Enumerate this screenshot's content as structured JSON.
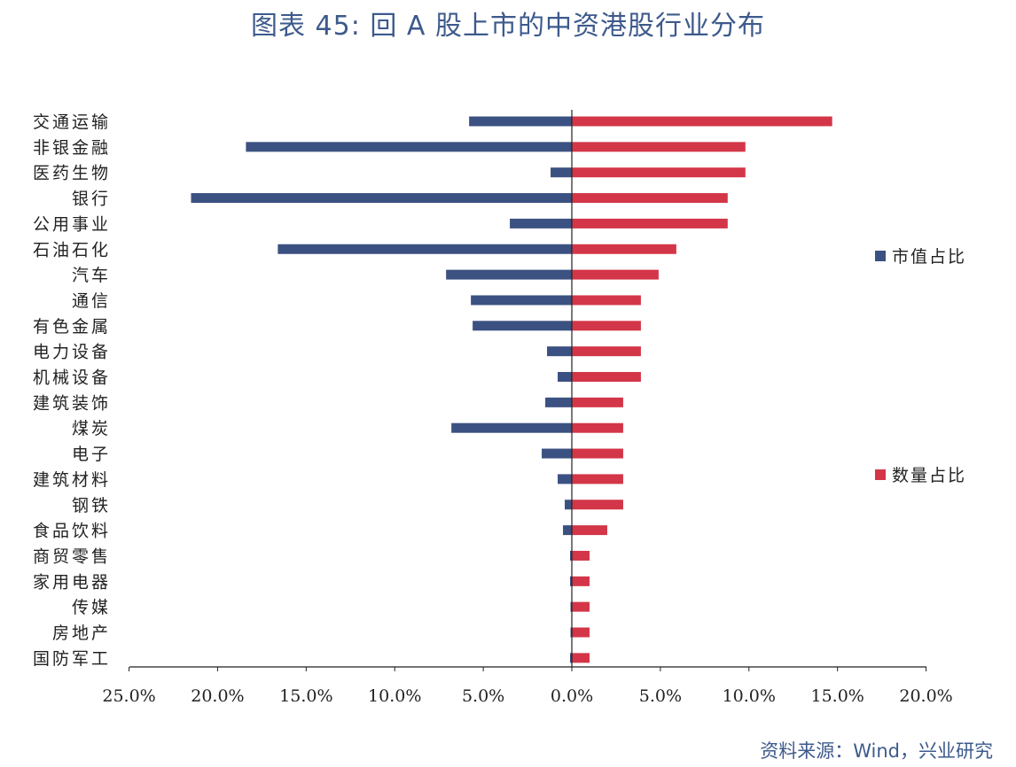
{
  "title": "图表 45: 回 A 股上市的中资港股行业分布",
  "source": "资料来源：Wind，兴业研究",
  "colors": {
    "market_cap": "#3b5181",
    "count": "#d33648",
    "title": "#3d5a8c",
    "axis": "#222222"
  },
  "chart_data": {
    "type": "bar",
    "orientation": "horizontal",
    "title": "图表 45: 回 A 股上市的中资港股行业分布",
    "xlabel": "",
    "ylabel": "",
    "xlim": [
      -25,
      20
    ],
    "xticks": [
      -25,
      -20,
      -15,
      -10,
      -5,
      0,
      5,
      10,
      15,
      20
    ],
    "xtick_labels": [
      "25.0%",
      "20.0%",
      "15.0%",
      "10.0%",
      "5.0%",
      "0.0%",
      "5.0%",
      "10.0%",
      "15.0%",
      "20.0%"
    ],
    "grid": false,
    "legend_position": "right",
    "categories": [
      "交通运输",
      "非银金融",
      "医药生物",
      "银行",
      "公用事业",
      "石油石化",
      "汽车",
      "通信",
      "有色金属",
      "电力设备",
      "机械设备",
      "建筑装饰",
      "煤炭",
      "电子",
      "建筑材料",
      "钢铁",
      "食品饮料",
      "商贸零售",
      "家用电器",
      "传媒",
      "房地产",
      "国防军工"
    ],
    "series": [
      {
        "name": "市值占比",
        "direction": "left",
        "values": [
          5.8,
          18.4,
          1.2,
          21.5,
          3.5,
          16.6,
          7.1,
          5.7,
          5.6,
          1.4,
          0.8,
          1.5,
          6.8,
          1.7,
          0.8,
          0.4,
          0.5,
          0.1,
          0.1,
          0.05,
          0.05,
          0.1
        ]
      },
      {
        "name": "数量占比",
        "direction": "right",
        "values": [
          14.7,
          9.8,
          9.8,
          8.8,
          8.8,
          5.9,
          4.9,
          3.9,
          3.9,
          3.9,
          3.9,
          2.9,
          2.9,
          2.9,
          2.9,
          2.9,
          2.0,
          1.0,
          1.0,
          1.0,
          1.0,
          1.0
        ]
      }
    ]
  }
}
